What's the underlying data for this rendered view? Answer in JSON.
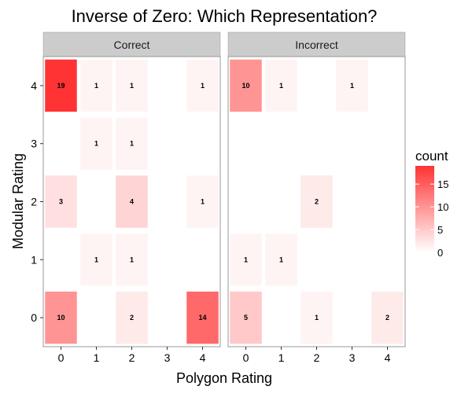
{
  "chart_data": {
    "type": "heatmap",
    "title": "Inverse of Zero: Which Representation?",
    "xlabel": "Polygon Rating",
    "ylabel": "Modular Rating",
    "x_ticks": [
      "0",
      "1",
      "2",
      "3",
      "4"
    ],
    "y_ticks": [
      "0",
      "1",
      "2",
      "3",
      "4"
    ],
    "xlim": [
      -0.5,
      4.5
    ],
    "ylim": [
      -0.5,
      4.5
    ],
    "grid": false,
    "legend": {
      "title": "count",
      "placement": "right",
      "ticks": [
        "0",
        "5",
        "10",
        "15"
      ],
      "range": [
        0,
        19
      ],
      "low_color": "#ffffff",
      "high_color": "#ff3333"
    },
    "panels": [
      {
        "name": "Correct",
        "cells": [
          {
            "x": 0,
            "y": 4,
            "count": 19
          },
          {
            "x": 1,
            "y": 4,
            "count": 1
          },
          {
            "x": 2,
            "y": 4,
            "count": 1
          },
          {
            "x": 4,
            "y": 4,
            "count": 1
          },
          {
            "x": 1,
            "y": 3,
            "count": 1
          },
          {
            "x": 2,
            "y": 3,
            "count": 1
          },
          {
            "x": 0,
            "y": 2,
            "count": 3
          },
          {
            "x": 2,
            "y": 2,
            "count": 4
          },
          {
            "x": 4,
            "y": 2,
            "count": 1
          },
          {
            "x": 1,
            "y": 1,
            "count": 1
          },
          {
            "x": 2,
            "y": 1,
            "count": 1
          },
          {
            "x": 0,
            "y": 0,
            "count": 10
          },
          {
            "x": 2,
            "y": 0,
            "count": 2
          },
          {
            "x": 4,
            "y": 0,
            "count": 14
          }
        ]
      },
      {
        "name": "Incorrect",
        "cells": [
          {
            "x": 0,
            "y": 4,
            "count": 10
          },
          {
            "x": 1,
            "y": 4,
            "count": 1
          },
          {
            "x": 3,
            "y": 4,
            "count": 1
          },
          {
            "x": 2,
            "y": 2,
            "count": 2
          },
          {
            "x": 0,
            "y": 1,
            "count": 1
          },
          {
            "x": 1,
            "y": 1,
            "count": 1
          },
          {
            "x": 0,
            "y": 0,
            "count": 5
          },
          {
            "x": 2,
            "y": 0,
            "count": 1
          },
          {
            "x": 4,
            "y": 0,
            "count": 2
          }
        ]
      }
    ]
  }
}
